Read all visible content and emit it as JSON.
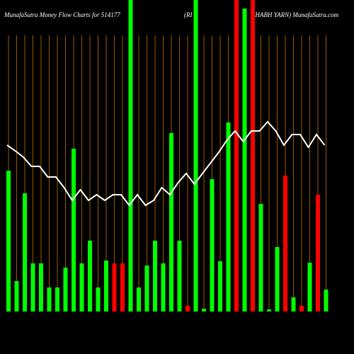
{
  "chart_data": {
    "type": "bar",
    "title_parts": [
      "MunafaSutra  Money Flow  Charts for 514177",
      "(RI",
      "SHABH YARN) MunafaSutra.com"
    ],
    "ylim": [
      0,
      440
    ],
    "grid": true,
    "grid_color": "#9a5a00",
    "values": [
      199,
      43,
      167,
      68,
      68,
      34,
      34,
      62,
      230,
      68,
      100,
      34,
      72,
      68,
      68,
      440,
      34,
      65,
      100,
      68,
      252,
      100,
      8,
      440,
      4,
      187,
      71,
      267,
      440,
      428,
      440,
      152,
      3,
      91,
      192,
      20,
      8,
      69,
      165,
      31
    ],
    "colors": [
      "#00ff00",
      "#00ff00",
      "#00ff00",
      "#00ff00",
      "#00ff00",
      "#00ff00",
      "#00ff00",
      "#00ff00",
      "#00ff00",
      "#00ff00",
      "#00ff00",
      "#00ff00",
      "#00ff00",
      "#ff0000",
      "#ff0000",
      "#00ff00",
      "#00ff00",
      "#00ff00",
      "#00ff00",
      "#00ff00",
      "#00ff00",
      "#00ff00",
      "#ff0000",
      "#00ff00",
      "#00ff00",
      "#00ff00",
      "#00ff00",
      "#00ff00",
      "#ff0000",
      "#00ff00",
      "#ff0000",
      "#00ff00",
      "#00ff00",
      "#00ff00",
      "#ff0000",
      "#00ff00",
      "#ff0000",
      "#00ff00",
      "#ff0000",
      "#00ff00"
    ],
    "line": {
      "color": "#ffffff",
      "values": [
        235,
        227,
        218,
        205,
        205,
        190,
        190,
        175,
        157,
        172,
        157,
        165,
        157,
        165,
        165,
        150,
        165,
        150,
        157,
        175,
        165,
        182,
        195,
        180,
        195,
        210,
        225,
        242,
        255,
        240,
        255,
        255,
        268,
        255,
        235,
        250,
        250,
        232,
        250,
        235
      ]
    }
  }
}
